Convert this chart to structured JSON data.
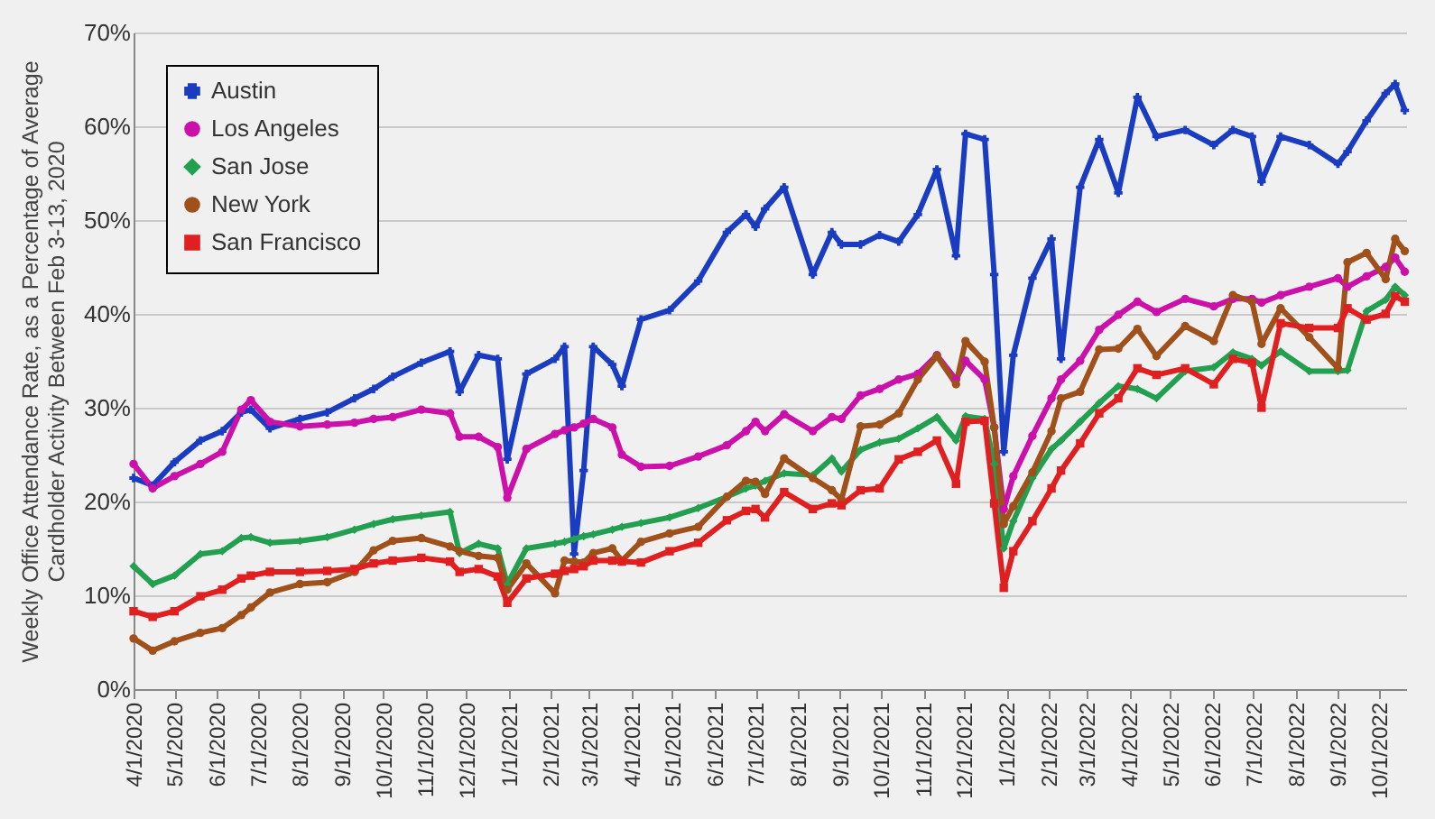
{
  "chart_data": {
    "type": "line",
    "ylabel": "Weekly Office Attendance  Rate, as a Percentage of Average\nCardholder Activity Between Feb 3-13, 2020",
    "x": [
      "2020-04-01",
      "2020-04-15",
      "2020-05-01",
      "2020-05-20",
      "2020-06-05",
      "2020-06-19",
      "2020-06-26",
      "2020-07-10",
      "2020-08-01",
      "2020-08-21",
      "2020-09-10",
      "2020-09-24",
      "2020-10-08",
      "2020-10-29",
      "2020-11-19",
      "2020-11-26",
      "2020-12-10",
      "2020-12-24",
      "2020-12-31",
      "2021-01-14",
      "2021-02-04",
      "2021-02-11",
      "2021-02-18",
      "2021-02-25",
      "2021-03-04",
      "2021-03-18",
      "2021-03-25",
      "2021-04-08",
      "2021-04-29",
      "2021-05-20",
      "2021-06-10",
      "2021-06-24",
      "2021-07-01",
      "2021-07-08",
      "2021-07-22",
      "2021-08-12",
      "2021-08-26",
      "2021-09-02",
      "2021-09-16",
      "2021-09-30",
      "2021-10-14",
      "2021-10-28",
      "2021-11-11",
      "2021-11-25",
      "2021-12-02",
      "2021-12-16",
      "2021-12-23",
      "2021-12-30",
      "2022-01-06",
      "2022-01-20",
      "2022-02-03",
      "2022-02-10",
      "2022-02-24",
      "2022-03-10",
      "2022-03-24",
      "2022-04-07",
      "2022-04-21",
      "2022-05-12",
      "2022-06-02",
      "2022-06-16",
      "2022-06-30",
      "2022-07-07",
      "2022-07-21",
      "2022-08-11",
      "2022-09-01",
      "2022-09-08",
      "2022-09-22",
      "2022-10-06",
      "2022-10-13",
      "2022-10-20"
    ],
    "xlim": [
      "2020-04-01",
      "2022-10-21"
    ],
    "xticks": [
      {
        "value": "2020-04-01",
        "label": "4/1/2020"
      },
      {
        "value": "2020-05-01",
        "label": "5/1/2020"
      },
      {
        "value": "2020-06-01",
        "label": "6/1/2020"
      },
      {
        "value": "2020-07-01",
        "label": "7/1/2020"
      },
      {
        "value": "2020-08-01",
        "label": "8/1/2020"
      },
      {
        "value": "2020-09-01",
        "label": "9/1/2020"
      },
      {
        "value": "2020-10-01",
        "label": "10/1/2020"
      },
      {
        "value": "2020-11-01",
        "label": "11/1/2020"
      },
      {
        "value": "2020-12-01",
        "label": "12/1/2020"
      },
      {
        "value": "2021-01-01",
        "label": "1/1/2021"
      },
      {
        "value": "2021-02-01",
        "label": "2/1/2021"
      },
      {
        "value": "2021-03-01",
        "label": "3/1/2021"
      },
      {
        "value": "2021-04-01",
        "label": "4/1/2021"
      },
      {
        "value": "2021-05-01",
        "label": "5/1/2021"
      },
      {
        "value": "2021-06-01",
        "label": "6/1/2021"
      },
      {
        "value": "2021-07-01",
        "label": "7/1/2021"
      },
      {
        "value": "2021-08-01",
        "label": "8/1/2021"
      },
      {
        "value": "2021-09-01",
        "label": "9/1/2021"
      },
      {
        "value": "2021-10-01",
        "label": "10/1/2021"
      },
      {
        "value": "2021-11-01",
        "label": "11/1/2021"
      },
      {
        "value": "2021-12-01",
        "label": "12/1/2021"
      },
      {
        "value": "2022-01-01",
        "label": "1/1/2022"
      },
      {
        "value": "2022-02-01",
        "label": "2/1/2022"
      },
      {
        "value": "2022-03-01",
        "label": "3/1/2022"
      },
      {
        "value": "2022-04-01",
        "label": "4/1/2022"
      },
      {
        "value": "2022-05-01",
        "label": "5/1/2022"
      },
      {
        "value": "2022-06-01",
        "label": "6/1/2022"
      },
      {
        "value": "2022-07-01",
        "label": "7/1/2022"
      },
      {
        "value": "2022-08-01",
        "label": "8/1/2022"
      },
      {
        "value": "2022-09-01",
        "label": "9/1/2022"
      },
      {
        "value": "2022-10-01",
        "label": "10/1/2022"
      }
    ],
    "ylim": [
      0,
      70
    ],
    "yticks": [
      {
        "value": 0,
        "label": "0%"
      },
      {
        "value": 10,
        "label": "10%"
      },
      {
        "value": 20,
        "label": "20%"
      },
      {
        "value": 30,
        "label": "30%"
      },
      {
        "value": 40,
        "label": "40%"
      },
      {
        "value": 50,
        "label": "50%"
      },
      {
        "value": 60,
        "label": "60%"
      },
      {
        "value": 70,
        "label": "70%"
      }
    ],
    "grid": "y",
    "legend": "top left",
    "series": [
      {
        "name": "Austin",
        "color": "#1a3cc0",
        "marker": "cross",
        "values": [
          22.5,
          21.7,
          24.2,
          26.5,
          27.5,
          29.5,
          29.8,
          27.8,
          28.8,
          29.5,
          31,
          32,
          33.3,
          34.8,
          36,
          31.7,
          35.6,
          35.2,
          24.5,
          33.6,
          35.2,
          36.5,
          14.4,
          23.3,
          36.5,
          34.6,
          32.3,
          39.4,
          40.4,
          43.5,
          48.7,
          50.6,
          49.3,
          51.2,
          53.5,
          44.2,
          48.7,
          47.4,
          47.4,
          48.4,
          47.7,
          50.6,
          55.4,
          46.2,
          59.2,
          58.6,
          44.2,
          25.3,
          35.6,
          43.8,
          48,
          35.2,
          53.5,
          58.6,
          52.9,
          63.1,
          58.9,
          59.6,
          58,
          59.6,
          58.9,
          54.1,
          58.9,
          58,
          56,
          57.3,
          60.6,
          63.5,
          64.5,
          61.7
        ]
      },
      {
        "name": "Los Angeles",
        "color": "#cc10aa",
        "marker": "circle",
        "values": [
          24,
          21.4,
          22.7,
          24,
          25.3,
          29.8,
          30.8,
          28.5,
          28,
          28.2,
          28.4,
          28.8,
          29,
          29.8,
          29.4,
          26.9,
          26.9,
          25.8,
          20.4,
          25.6,
          27.2,
          27.6,
          27.9,
          28.3,
          28.8,
          27.9,
          25,
          23.7,
          23.8,
          24.8,
          26,
          27.5,
          28.5,
          27.5,
          29.3,
          27.5,
          29,
          28.8,
          31.3,
          32,
          33,
          33.6,
          35.6,
          33,
          35,
          33,
          27.9,
          19.2,
          22.7,
          27,
          31,
          33,
          35,
          38.3,
          39.9,
          41.3,
          40.2,
          41.6,
          40.8,
          41.6,
          41.6,
          41.2,
          42,
          42.9,
          43.8,
          42.9,
          44,
          45,
          46,
          44.5
        ]
      },
      {
        "name": "San Jose",
        "color": "#22a050",
        "marker": "diamond",
        "values": [
          13.1,
          11.2,
          12.1,
          14.4,
          14.7,
          16.1,
          16.2,
          15.6,
          15.8,
          16.2,
          17,
          17.6,
          18.1,
          18.5,
          18.9,
          14.5,
          15.5,
          15,
          11.2,
          15,
          15.5,
          15.7,
          16,
          16.3,
          16.5,
          17,
          17.3,
          17.7,
          18.3,
          19.3,
          20.5,
          21.4,
          21.7,
          22.2,
          23,
          22.8,
          24.6,
          23.2,
          25.5,
          26.3,
          26.7,
          27.8,
          29,
          26.5,
          29.1,
          28.8,
          24,
          15,
          17.9,
          22.5,
          25.6,
          26.5,
          28.5,
          30.5,
          32.3,
          32,
          31,
          33.9,
          34.3,
          35.9,
          35.2,
          34.5,
          36,
          33.9,
          33.9,
          34,
          40.3,
          41.5,
          42.9,
          42
        ]
      },
      {
        "name": "New York",
        "color": "#a0501a",
        "marker": "circle",
        "values": [
          5.4,
          4.1,
          5.1,
          6,
          6.5,
          7.9,
          8.7,
          10.3,
          11.2,
          11.4,
          12.5,
          14.8,
          15.8,
          16.1,
          15.2,
          14.7,
          14.2,
          14,
          10.6,
          13.4,
          10.2,
          13.7,
          13.6,
          13.5,
          14.5,
          15,
          13.7,
          15.7,
          16.6,
          17.3,
          20.5,
          22.2,
          22.1,
          20.8,
          24.6,
          22.5,
          21.2,
          20.2,
          28,
          28.2,
          29.4,
          33,
          35.5,
          32.5,
          37.1,
          34.9,
          27.9,
          17.6,
          19.5,
          23.1,
          27.5,
          31,
          31.7,
          36.2,
          36.3,
          38.4,
          35.5,
          38.7,
          37.1,
          42,
          41.3,
          36.8,
          40.6,
          37.5,
          34.2,
          45.5,
          46.5,
          43.7,
          48,
          46.7
        ]
      },
      {
        "name": "San Francisco",
        "color": "#e02020",
        "marker": "square",
        "values": [
          8.3,
          7.7,
          8.3,
          9.9,
          10.6,
          11.8,
          12.1,
          12.5,
          12.5,
          12.6,
          12.8,
          13.4,
          13.7,
          14,
          13.6,
          12.5,
          12.8,
          12,
          9.2,
          11.8,
          12.3,
          12.6,
          12.8,
          13.1,
          13.7,
          13.7,
          13.6,
          13.5,
          14.7,
          15.6,
          18,
          19,
          19.2,
          18.3,
          21,
          19.2,
          19.8,
          19.6,
          21.2,
          21.4,
          24.5,
          25.3,
          26.5,
          21.9,
          28.5,
          28.6,
          19.8,
          10.8,
          14.7,
          17.9,
          21.4,
          23.3,
          26.2,
          29.4,
          31,
          34.2,
          33.5,
          34.2,
          32.5,
          35.2,
          34.8,
          30,
          39,
          38.5,
          38.5,
          40.6,
          39.4,
          40,
          41.9,
          41.3
        ]
      }
    ]
  }
}
